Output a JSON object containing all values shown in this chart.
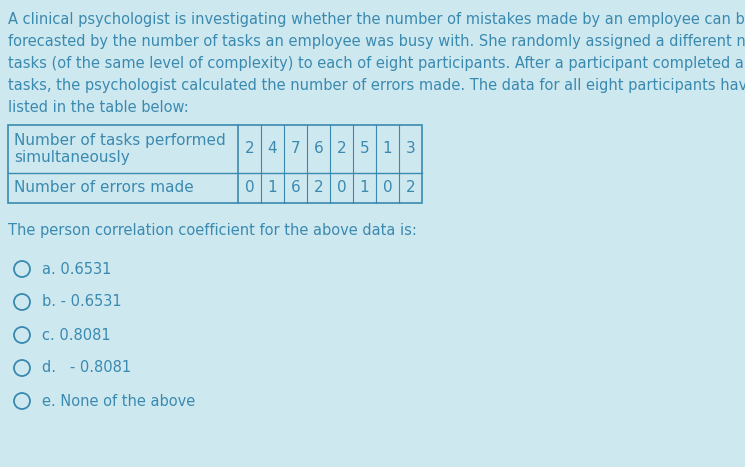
{
  "background_color": "#cee8f0",
  "text_color": "#3a8ab0",
  "paragraph_lines": [
    "A clinical psychologist is investigating whether the number of mistakes made by an employee can be",
    "forecasted by the number of tasks an employee was busy with. She randomly assigned a different number of",
    "tasks (of the same level of complexity) to each of eight participants. After a participant completed all assigned",
    "tasks, the psychologist calculated the number of errors made. The data for all eight participants have been",
    "listed in the table below:"
  ],
  "table": {
    "row1_label": "Number of tasks performed\nsimultaneously",
    "row1_values": [
      "2",
      "4",
      "7",
      "6",
      "2",
      "5",
      "1",
      "3"
    ],
    "row2_label": "Number of errors made",
    "row2_values": [
      "0",
      "1",
      "6",
      "2",
      "0",
      "1",
      "0",
      "2"
    ]
  },
  "question": "The person correlation coefficient for the above data is:",
  "options": [
    "a. 0.6531",
    "b. - 0.6531",
    "c. 0.8081",
    "d.   - 0.8081",
    "e. None of the above"
  ],
  "font_size": 10.5,
  "table_font_size": 11.0
}
